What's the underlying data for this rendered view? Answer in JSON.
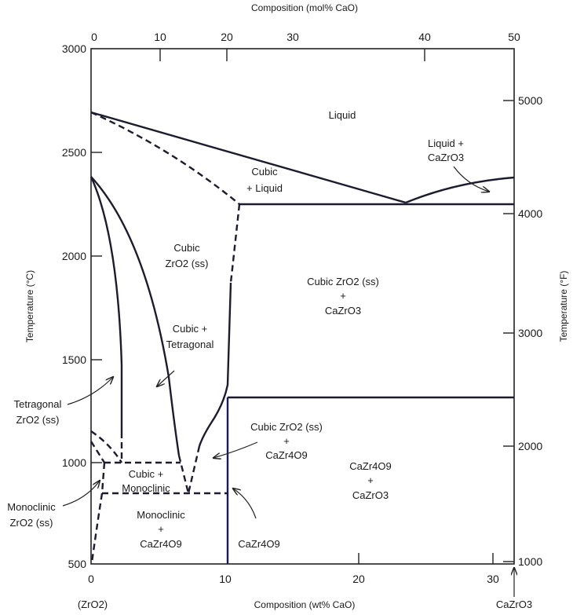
{
  "chart_data": {
    "type": "phase-diagram",
    "title": "",
    "xlabel_bottom": "Composition (wt% CaO)",
    "xlabel_top": "Composition (mol% CaO)",
    "ylabel_left": "Temperature (°C)",
    "ylabel_right": "Temperature (°F)",
    "x_bottom_ticks": [
      "0",
      "10",
      "20",
      "30"
    ],
    "x_top_ticks": [
      "0",
      "10",
      "20",
      "30",
      "40",
      "50"
    ],
    "y_left_ticks": [
      "3000",
      "2500",
      "2000",
      "1500",
      "1000",
      "500"
    ],
    "y_right_ticks": [
      "5000",
      "4000",
      "3000",
      "2000",
      "1000"
    ],
    "xlim_wt": [
      0,
      31.6
    ],
    "ylim_c": [
      500,
      3000
    ],
    "left_end_label": "(ZrO2)",
    "right_end_label": "CaZrO3",
    "key_points": {
      "ZrO2_melting_C": 2700,
      "eutectic": {
        "wt_CaO": 23.5,
        "T_C": 2250
      },
      "cubic_liquid_invariant_T_C": 2250,
      "cubic_transition_ZrO2_C": 2370,
      "CaZr4O9_decomp_T_C": 1310,
      "eutectoid": {
        "wt_CaO": 7.5,
        "T_C": 850
      },
      "cubic_monoclinic_T_C": 1000,
      "CaZr4O9_wt_CaO": 10.2
    },
    "regions": {
      "liquid": "Liquid",
      "liquid_cazro3_1": "Liquid +",
      "liquid_cazro3_2": "CaZrO3",
      "cubic_liquid_1": "Cubic",
      "cubic_liquid_2": "+ Liquid",
      "cubic_ss_1": "Cubic",
      "cubic_ss_2": "ZrO2 (ss)",
      "cubic_cazro3_1": "Cubic ZrO2 (ss)",
      "cubic_cazro3_2": "+",
      "cubic_cazro3_3": "CaZrO3",
      "cubic_tet_1": "Cubic +",
      "cubic_tet_2": "Tetragonal",
      "tet_1": "Tetragonal",
      "tet_2": "ZrO2 (ss)",
      "cubic_cazr4o9_1": "Cubic ZrO2 (ss)",
      "cubic_cazr4o9_2": "+",
      "cubic_cazr4o9_3": "CaZr4O9",
      "cazr4o9_cazro3_1": "CaZr4O9",
      "cazr4o9_cazro3_2": "+",
      "cazr4o9_cazro3_3": "CaZrO3",
      "cubic_mono_1": "Cubic +",
      "cubic_mono_2": "Monoclinic",
      "mono_1": "Monoclinic",
      "mono_2": "ZrO2 (ss)",
      "mono_cazr4o9_1": "Monoclinic",
      "mono_cazr4o9_2": "+",
      "mono_cazr4o9_3": "CaZr4O9",
      "cazr4o9": "CaZr4O9"
    },
    "colors": {
      "line": "#1c1c2e",
      "compound_line": "#1a1a5e"
    }
  }
}
